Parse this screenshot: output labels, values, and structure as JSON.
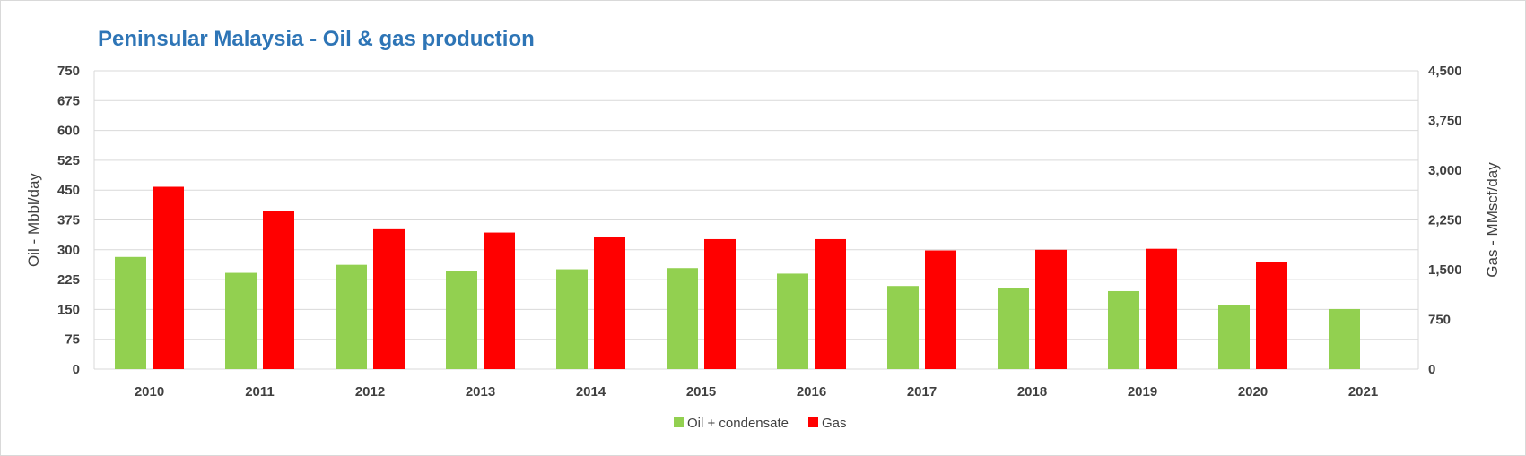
{
  "chart_data": {
    "type": "bar",
    "title": "Peninsular Malaysia - Oil & gas production",
    "categories": [
      "2010",
      "2011",
      "2012",
      "2013",
      "2014",
      "2015",
      "2016",
      "2017",
      "2018",
      "2019",
      "2020",
      "2021"
    ],
    "y_left": {
      "label": "Oil - Mbbl/day",
      "lim": [
        0,
        750
      ],
      "ticks": [
        0,
        75,
        150,
        225,
        300,
        375,
        450,
        525,
        600,
        675,
        750
      ],
      "tick_labels": [
        "0",
        "75",
        "150",
        "225",
        "300",
        "375",
        "450",
        "525",
        "600",
        "675",
        "750"
      ]
    },
    "y_right": {
      "label": "Gas - MMscf/day",
      "lim": [
        0,
        4500
      ],
      "ticks": [
        0,
        750,
        1500,
        2250,
        3000,
        3750,
        4500
      ],
      "tick_labels": [
        "0",
        "750",
        "1,500",
        "2,250",
        "3,000",
        "3,750",
        "4,500"
      ]
    },
    "series": [
      {
        "name": "Oil + condensate",
        "axis": "left",
        "color": "#92d050",
        "values": [
          282,
          242,
          262,
          247,
          251,
          254,
          240,
          209,
          203,
          196,
          161,
          151
        ]
      },
      {
        "name": "Gas",
        "axis": "right",
        "color": "#ff0000",
        "values": [
          2750,
          2380,
          2110,
          2060,
          2000,
          1960,
          1960,
          1790,
          1800,
          1815,
          1620,
          null
        ]
      }
    ],
    "grid": true,
    "legend": "bottom-center"
  }
}
